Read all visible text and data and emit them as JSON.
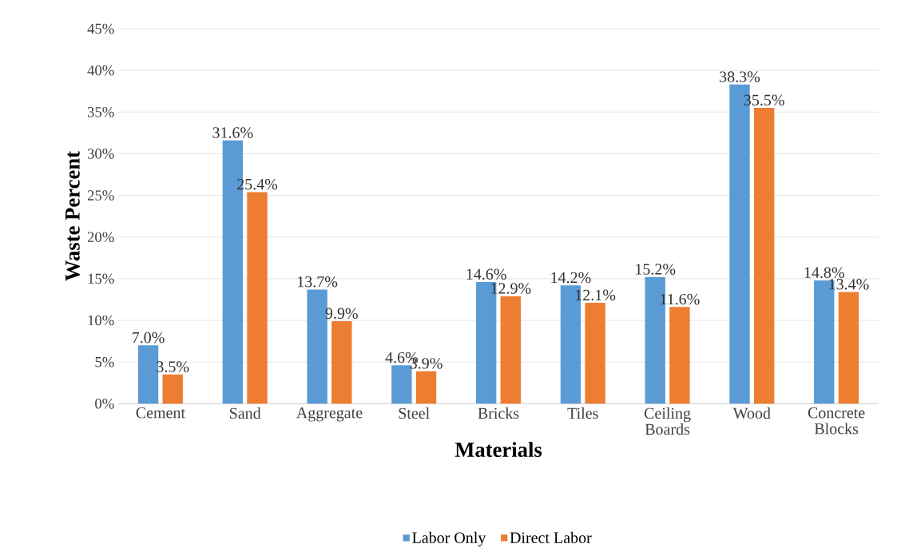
{
  "chart_data": {
    "type": "bar",
    "xlabel": "Materials",
    "ylabel": "Waste Percent",
    "categories": [
      "Cement",
      "Sand",
      "Aggregate",
      "Steel",
      "Bricks",
      "Tiles",
      "Ceiling Boards",
      "Wood",
      "Concrete Blocks"
    ],
    "series": [
      {
        "name": "Labor Only",
        "color": "#5b9bd5",
        "values": [
          7.0,
          31.6,
          13.7,
          4.6,
          14.6,
          14.2,
          15.2,
          38.3,
          14.8
        ],
        "value_labels": [
          "7.0%",
          "31.6%",
          "13.7%",
          "4.6%",
          "14.6%",
          "14.2%",
          "15.2%",
          "38.3%",
          "14.8%"
        ]
      },
      {
        "name": "Direct Labor",
        "color": "#ed7d31",
        "values": [
          3.5,
          25.4,
          9.9,
          3.9,
          12.9,
          12.1,
          11.6,
          35.5,
          13.4
        ],
        "value_labels": [
          "3.5%",
          "25.4%",
          "9.9%",
          "3.9%",
          "12.9%",
          "12.1%",
          "11.6%",
          "35.5%",
          "13.4%"
        ]
      }
    ],
    "ylim": [
      0,
      45
    ],
    "yticks": [
      {
        "value": 0,
        "label": "0%"
      },
      {
        "value": 5,
        "label": "5%"
      },
      {
        "value": 10,
        "label": "10%"
      },
      {
        "value": 15,
        "label": "15%"
      },
      {
        "value": 20,
        "label": "20%"
      },
      {
        "value": 25,
        "label": "25%"
      },
      {
        "value": 30,
        "label": "30%"
      },
      {
        "value": 35,
        "label": "35%"
      },
      {
        "value": 40,
        "label": "40%"
      },
      {
        "value": 45,
        "label": "45%"
      }
    ],
    "grid": "y",
    "legend": "bottom"
  }
}
